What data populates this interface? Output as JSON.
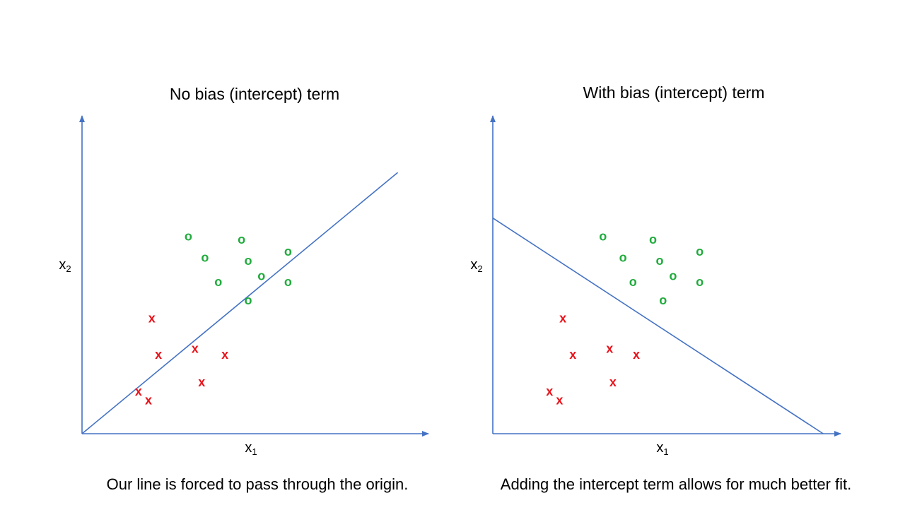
{
  "colors": {
    "axis": "#4472c4",
    "line": "#4472c4",
    "positive": "#1fab3c",
    "negative": "#e8141c",
    "text": "#000000"
  },
  "marker_labels": {
    "positive": "o",
    "negative": "x"
  },
  "chart_data": [
    {
      "type": "scatter",
      "title": "No bias (intercept) term",
      "caption": "Our line is forced to pass through the origin.",
      "xlabel": "x",
      "xlabel_sub": "1",
      "ylabel": "x",
      "ylabel_sub": "2",
      "xlim": [
        0,
        10
      ],
      "ylim": [
        0,
        10
      ],
      "decision_line": {
        "from": [
          0,
          0
        ],
        "to": [
          9.5,
          8.6
        ]
      },
      "series": [
        {
          "name": "o",
          "class": "positive",
          "points": [
            [
              3.2,
              6.5
            ],
            [
              4.8,
              6.4
            ],
            [
              6.2,
              6.0
            ],
            [
              3.7,
              5.8
            ],
            [
              5.0,
              5.7
            ],
            [
              4.1,
              5.0
            ],
            [
              5.4,
              5.2
            ],
            [
              6.2,
              5.0
            ],
            [
              5.0,
              4.4
            ]
          ]
        },
        {
          "name": "x",
          "class": "negative",
          "points": [
            [
              2.1,
              3.8
            ],
            [
              2.3,
              2.6
            ],
            [
              3.4,
              2.8
            ],
            [
              4.3,
              2.6
            ],
            [
              3.6,
              1.7
            ],
            [
              1.7,
              1.4
            ],
            [
              2.0,
              1.1
            ]
          ]
        }
      ]
    },
    {
      "type": "scatter",
      "title": "With bias (intercept) term",
      "caption": "Adding the intercept term allows for much better fit.",
      "xlabel": "x",
      "xlabel_sub": "1",
      "ylabel": "x",
      "ylabel_sub": "2",
      "xlim": [
        0,
        10
      ],
      "ylim": [
        0,
        10
      ],
      "decision_line": {
        "from": [
          0,
          7.1
        ],
        "to": [
          9.9,
          0
        ]
      },
      "series": [
        {
          "name": "o",
          "class": "positive",
          "points": [
            [
              3.3,
              6.5
            ],
            [
              4.8,
              6.4
            ],
            [
              6.2,
              6.0
            ],
            [
              3.9,
              5.8
            ],
            [
              5.0,
              5.7
            ],
            [
              4.2,
              5.0
            ],
            [
              5.4,
              5.2
            ],
            [
              6.2,
              5.0
            ],
            [
              5.1,
              4.4
            ]
          ]
        },
        {
          "name": "x",
          "class": "negative",
          "points": [
            [
              2.1,
              3.8
            ],
            [
              2.4,
              2.6
            ],
            [
              3.5,
              2.8
            ],
            [
              4.3,
              2.6
            ],
            [
              3.6,
              1.7
            ],
            [
              1.7,
              1.4
            ],
            [
              2.0,
              1.1
            ]
          ]
        }
      ]
    }
  ]
}
